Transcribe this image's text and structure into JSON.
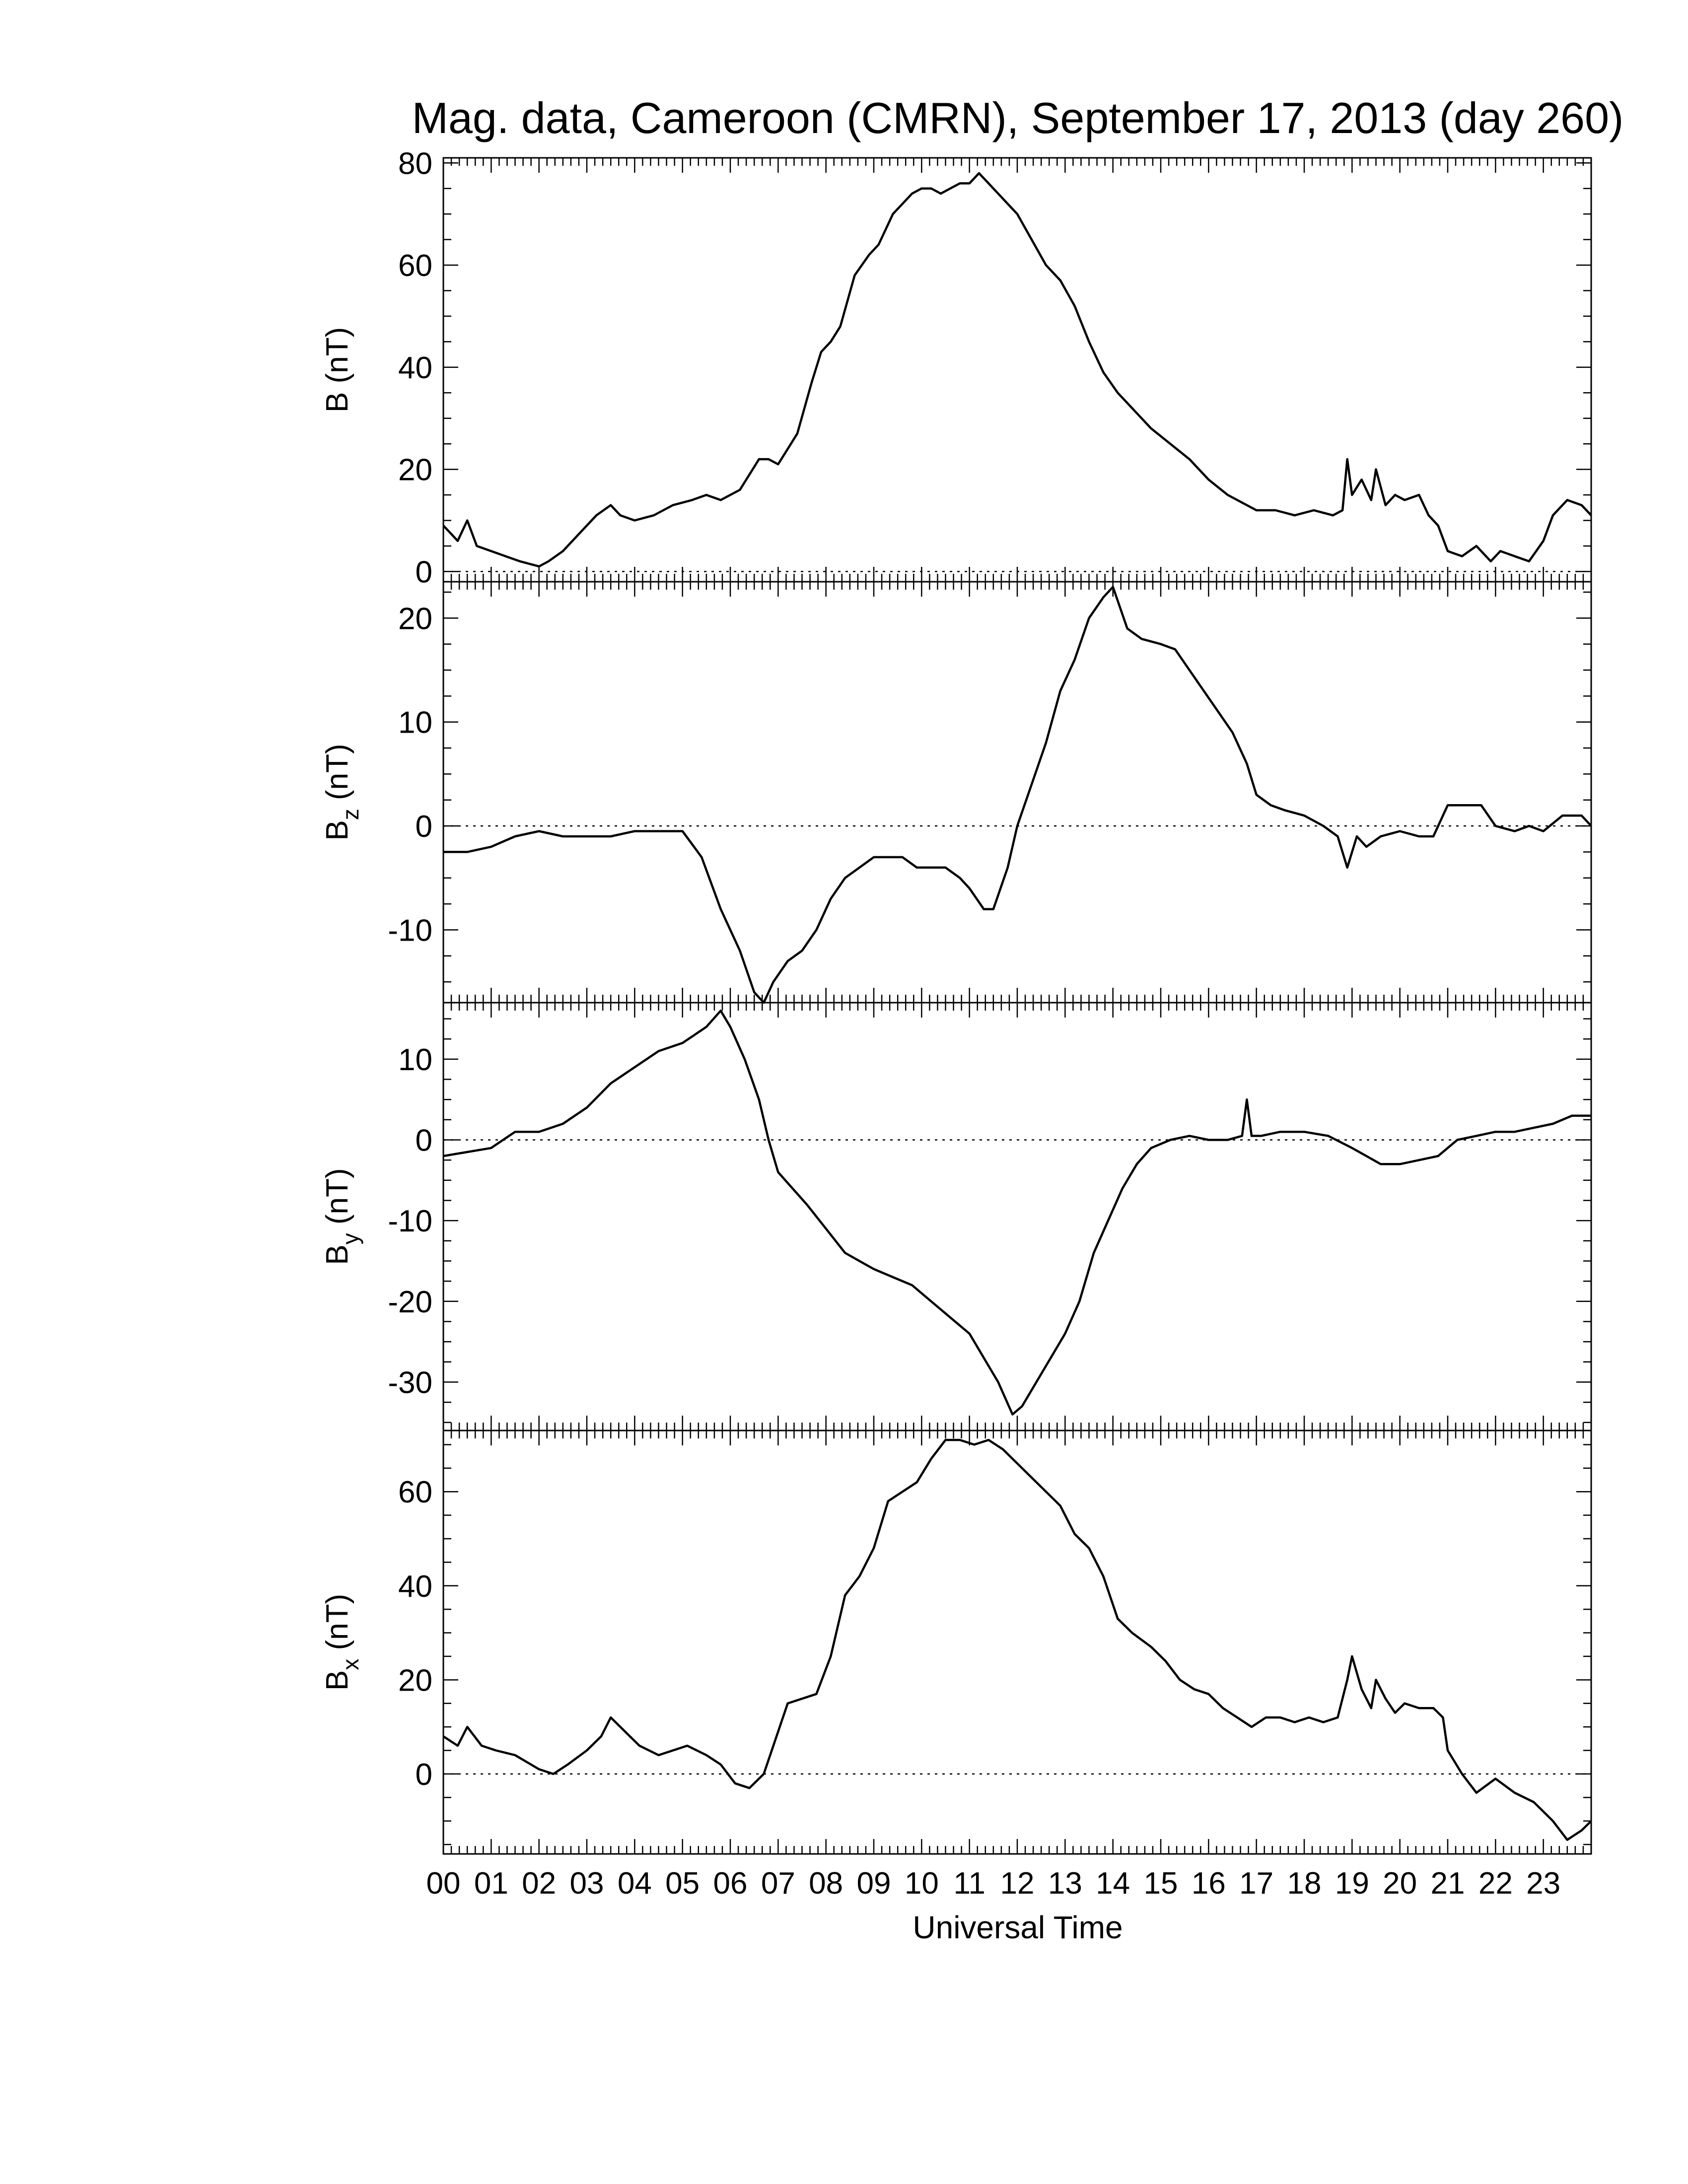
{
  "figure": {
    "title": "Mag. data, Cameroon (CMRN), September 17, 2013 (day 260)",
    "xlabel": "Universal Time"
  },
  "chart_data": [
    {
      "type": "line",
      "panel": "B",
      "ylabel": "B (nT)",
      "ylabel_base": "B",
      "ylabel_sub": "",
      "ylabel_unit": " (nT)",
      "ylim": [
        -2,
        81
      ],
      "yticks": [
        0,
        20,
        40,
        60,
        80
      ],
      "zero_line": true,
      "xlim": [
        0,
        24
      ],
      "x": [
        0.0,
        0.3,
        0.5,
        0.7,
        1.0,
        1.3,
        1.6,
        2.0,
        2.2,
        2.5,
        2.8,
        3.2,
        3.5,
        3.7,
        4.0,
        4.4,
        4.8,
        5.2,
        5.5,
        5.8,
        6.2,
        6.6,
        6.8,
        7.0,
        7.4,
        7.7,
        7.9,
        8.1,
        8.3,
        8.6,
        8.9,
        9.1,
        9.4,
        9.6,
        9.8,
        10.0,
        10.2,
        10.4,
        10.6,
        10.8,
        11.0,
        11.2,
        11.4,
        11.7,
        12.0,
        12.3,
        12.6,
        12.9,
        13.2,
        13.5,
        13.8,
        14.1,
        14.4,
        14.8,
        15.2,
        15.6,
        16.0,
        16.4,
        16.8,
        17.0,
        17.4,
        17.8,
        18.2,
        18.6,
        18.8,
        18.9,
        19.0,
        19.2,
        19.4,
        19.5,
        19.7,
        19.9,
        20.1,
        20.4,
        20.6,
        20.8,
        21.0,
        21.3,
        21.6,
        21.9,
        22.1,
        22.4,
        22.7,
        23.0,
        23.2,
        23.5,
        23.8,
        24.0
      ],
      "values": [
        9,
        6,
        10,
        5,
        4,
        3,
        2,
        1,
        2,
        4,
        7,
        11,
        13,
        11,
        10,
        11,
        13,
        14,
        15,
        14,
        16,
        22,
        22,
        21,
        27,
        37,
        43,
        45,
        48,
        58,
        62,
        64,
        70,
        72,
        74,
        75,
        75,
        74,
        75,
        76,
        76,
        78,
        76,
        73,
        70,
        65,
        60,
        57,
        52,
        45,
        39,
        35,
        32,
        28,
        25,
        22,
        18,
        15,
        13,
        12,
        12,
        11,
        12,
        11,
        12,
        22,
        15,
        18,
        14,
        20,
        13,
        15,
        14,
        15,
        11,
        9,
        4,
        3,
        5,
        2,
        4,
        3,
        2,
        6,
        11,
        14,
        13,
        11
      ]
    },
    {
      "type": "line",
      "panel": "Bz",
      "ylabel": "Bz (nT)",
      "ylabel_base": "B",
      "ylabel_sub": "z",
      "ylabel_unit": " (nT)",
      "ylim": [
        -17,
        23.5
      ],
      "yticks": [
        -10,
        0,
        10,
        20
      ],
      "zero_line": true,
      "xlim": [
        0,
        24
      ],
      "x": [
        0.0,
        0.5,
        1.0,
        1.5,
        2.0,
        2.5,
        3.0,
        3.5,
        4.0,
        4.5,
        5.0,
        5.4,
        5.8,
        6.2,
        6.5,
        6.7,
        6.9,
        7.2,
        7.5,
        7.8,
        8.1,
        8.4,
        8.7,
        9.0,
        9.3,
        9.6,
        9.9,
        10.2,
        10.5,
        10.8,
        11.0,
        11.3,
        11.5,
        11.8,
        12.0,
        12.3,
        12.6,
        12.9,
        13.2,
        13.5,
        13.8,
        14.0,
        14.3,
        14.6,
        15.0,
        15.3,
        15.6,
        15.9,
        16.2,
        16.5,
        16.8,
        17.0,
        17.3,
        17.6,
        18.0,
        18.4,
        18.7,
        18.9,
        19.1,
        19.3,
        19.6,
        20.0,
        20.4,
        20.7,
        21.0,
        21.3,
        21.7,
        22.0,
        22.4,
        22.7,
        23.0,
        23.4,
        23.8,
        24.0
      ],
      "values": [
        -2.5,
        -2.5,
        -2,
        -1,
        -0.5,
        -1,
        -1,
        -1,
        -0.5,
        -0.5,
        -0.5,
        -3,
        -8,
        -12,
        -16,
        -17,
        -15,
        -13,
        -12,
        -10,
        -7,
        -5,
        -4,
        -3,
        -3,
        -3,
        -4,
        -4,
        -4,
        -5,
        -6,
        -8,
        -8,
        -4,
        0,
        4,
        8,
        13,
        16,
        20,
        22,
        23,
        19,
        18,
        17.5,
        17,
        15,
        13,
        11,
        9,
        6,
        3,
        2,
        1.5,
        1,
        0,
        -1,
        -4,
        -1,
        -2,
        -1,
        -0.5,
        -1,
        -1,
        2,
        2,
        2,
        0,
        -0.5,
        0,
        -0.5,
        1,
        1,
        0
      ]
    },
    {
      "type": "line",
      "panel": "By",
      "ylabel": "By (nT)",
      "ylabel_base": "B",
      "ylabel_sub": "y",
      "ylabel_unit": " (nT)",
      "ylim": [
        -36,
        17
      ],
      "yticks": [
        -30,
        -20,
        -10,
        0,
        10
      ],
      "zero_line": true,
      "xlim": [
        0,
        24
      ],
      "x": [
        0.0,
        0.5,
        1.0,
        1.5,
        2.0,
        2.5,
        3.0,
        3.5,
        4.0,
        4.5,
        5.0,
        5.5,
        5.8,
        6.0,
        6.3,
        6.6,
        6.8,
        7.0,
        7.3,
        7.6,
        8.0,
        8.4,
        8.7,
        9.0,
        9.4,
        9.8,
        10.2,
        10.6,
        11.0,
        11.3,
        11.6,
        11.9,
        12.1,
        12.4,
        12.7,
        13.0,
        13.3,
        13.6,
        13.9,
        14.2,
        14.5,
        14.8,
        15.2,
        15.6,
        16.0,
        16.4,
        16.7,
        16.8,
        16.9,
        17.1,
        17.5,
        18.0,
        18.5,
        19.0,
        19.3,
        19.6,
        20.0,
        20.4,
        20.8,
        21.2,
        21.6,
        22.0,
        22.4,
        22.8,
        23.2,
        23.6,
        24.0
      ],
      "values": [
        -2,
        -1.5,
        -1,
        1,
        1,
        2,
        4,
        7,
        9,
        11,
        12,
        14,
        16,
        14,
        10,
        5,
        0,
        -4,
        -6,
        -8,
        -11,
        -14,
        -15,
        -16,
        -17,
        -18,
        -20,
        -22,
        -24,
        -27,
        -30,
        -34,
        -33,
        -30,
        -27,
        -24,
        -20,
        -14,
        -10,
        -6,
        -3,
        -1,
        0,
        0.5,
        0,
        0,
        0.5,
        5,
        0.5,
        0.5,
        1,
        1,
        0.5,
        -1,
        -2,
        -3,
        -3,
        -2.5,
        -2,
        0,
        0.5,
        1,
        1,
        1.5,
        2,
        3,
        3
      ]
    },
    {
      "type": "line",
      "panel": "Bx",
      "ylabel": "Bx (nT)",
      "ylabel_base": "B",
      "ylabel_sub": "x",
      "ylabel_unit": " (nT)",
      "ylim": [
        -17,
        73
      ],
      "yticks": [
        0,
        20,
        40,
        60
      ],
      "zero_line": true,
      "xlim": [
        0,
        24
      ],
      "x": [
        0.0,
        0.3,
        0.5,
        0.8,
        1.1,
        1.5,
        2.0,
        2.3,
        2.6,
        3.0,
        3.3,
        3.5,
        3.8,
        4.1,
        4.5,
        4.8,
        5.1,
        5.5,
        5.8,
        6.1,
        6.4,
        6.7,
        6.9,
        7.2,
        7.5,
        7.8,
        8.1,
        8.4,
        8.7,
        9.0,
        9.3,
        9.6,
        9.9,
        10.2,
        10.5,
        10.8,
        11.1,
        11.4,
        11.7,
        12.0,
        12.3,
        12.6,
        12.9,
        13.2,
        13.5,
        13.8,
        14.1,
        14.4,
        14.8,
        15.1,
        15.4,
        15.7,
        16.0,
        16.3,
        16.6,
        16.9,
        17.2,
        17.5,
        17.8,
        18.1,
        18.4,
        18.7,
        18.9,
        19.0,
        19.2,
        19.4,
        19.5,
        19.7,
        19.9,
        20.1,
        20.4,
        20.7,
        20.9,
        21.0,
        21.3,
        21.6,
        22.0,
        22.4,
        22.8,
        23.0,
        23.2,
        23.5,
        23.8,
        24.0
      ],
      "values": [
        8,
        6,
        10,
        6,
        5,
        4,
        1,
        0,
        2,
        5,
        8,
        12,
        9,
        6,
        4,
        5,
        6,
        4,
        2,
        -2,
        -3,
        0,
        6,
        15,
        16,
        17,
        25,
        38,
        42,
        48,
        58,
        60,
        62,
        67,
        71,
        71,
        70,
        71,
        69,
        66,
        63,
        60,
        57,
        51,
        48,
        42,
        33,
        30,
        27,
        24,
        20,
        18,
        17,
        14,
        12,
        10,
        12,
        12,
        11,
        12,
        11,
        12,
        20,
        25,
        18,
        14,
        20,
        16,
        13,
        15,
        14,
        14,
        12,
        5,
        0,
        -4,
        -1,
        -4,
        -6,
        -8,
        -10,
        -14,
        -12,
        -10
      ]
    }
  ],
  "x_axis": {
    "range": [
      0,
      24
    ],
    "tick_labels": [
      "00",
      "01",
      "02",
      "03",
      "04",
      "05",
      "06",
      "07",
      "08",
      "09",
      "10",
      "11",
      "12",
      "13",
      "14",
      "15",
      "16",
      "17",
      "18",
      "19",
      "20",
      "21",
      "22",
      "23"
    ]
  }
}
